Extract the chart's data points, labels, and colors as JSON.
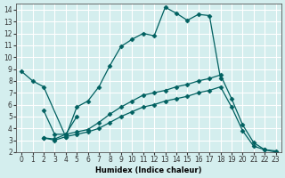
{
  "xlabel": "Humidex (Indice chaleur)",
  "bg_color": "#d4eeee",
  "grid_color": "#ffffff",
  "line_color": "#006060",
  "xlim": [
    -0.5,
    23.5
  ],
  "ylim": [
    2,
    14.5
  ],
  "xticks": [
    0,
    1,
    2,
    3,
    4,
    5,
    6,
    7,
    8,
    9,
    10,
    11,
    12,
    13,
    14,
    15,
    16,
    17,
    18,
    19,
    20,
    21,
    22,
    23
  ],
  "yticks": [
    2,
    3,
    4,
    5,
    6,
    7,
    8,
    9,
    10,
    11,
    12,
    13,
    14
  ],
  "line1_x": [
    0,
    1,
    2,
    4,
    5,
    6,
    7,
    8,
    9,
    10,
    11,
    12,
    13,
    14,
    15,
    16,
    17,
    18
  ],
  "line1_y": [
    8.8,
    8.0,
    7.5,
    3.3,
    5.8,
    6.3,
    7.5,
    9.3,
    10.9,
    11.5,
    12.0,
    11.8,
    14.2,
    13.7,
    13.1,
    13.6,
    13.5,
    8.2
  ],
  "line2_x": [
    2,
    3,
    4,
    5
  ],
  "line2_y": [
    5.5,
    3.5,
    3.5,
    5.0
  ],
  "line3_x": [
    2,
    3,
    4,
    5,
    6,
    7,
    8,
    9,
    10,
    11,
    12,
    13,
    14,
    15,
    16,
    17,
    18,
    19,
    20,
    21,
    22,
    23
  ],
  "line3_y": [
    3.2,
    3.1,
    3.5,
    3.7,
    3.9,
    4.5,
    5.2,
    5.8,
    6.3,
    6.8,
    7.0,
    7.2,
    7.5,
    7.7,
    8.0,
    8.2,
    8.5,
    6.5,
    4.3,
    2.8,
    2.2,
    2.1
  ],
  "line4_x": [
    2,
    3,
    4,
    5,
    6,
    7,
    8,
    9,
    10,
    11,
    12,
    13,
    14,
    15,
    16,
    17,
    18,
    19,
    20,
    21,
    22,
    23
  ],
  "line4_y": [
    3.2,
    3.0,
    3.3,
    3.5,
    3.7,
    4.0,
    4.5,
    5.0,
    5.4,
    5.8,
    6.0,
    6.3,
    6.5,
    6.7,
    7.0,
    7.2,
    7.5,
    5.8,
    3.8,
    2.5,
    2.2,
    2.0
  ]
}
